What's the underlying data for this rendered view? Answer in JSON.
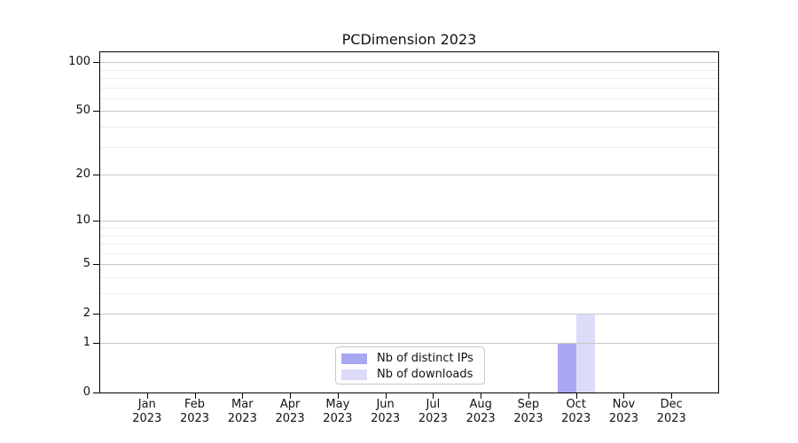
{
  "chart_data": {
    "type": "bar",
    "title": "PCDimension 2023",
    "year": "2023",
    "categories": [
      "Jan",
      "Feb",
      "Mar",
      "Apr",
      "May",
      "Jun",
      "Jul",
      "Aug",
      "Sep",
      "Oct",
      "Nov",
      "Dec"
    ],
    "series": [
      {
        "name": "Nb of distinct IPs",
        "color": "#a8a8f2",
        "values": [
          0,
          0,
          0,
          0,
          0,
          0,
          0,
          0,
          0,
          1,
          0,
          0
        ]
      },
      {
        "name": "Nb of downloads",
        "color": "#dcdcf8",
        "values": [
          0,
          0,
          0,
          0,
          0,
          0,
          0,
          0,
          0,
          2,
          0,
          0
        ]
      }
    ],
    "y_scale": "log1p",
    "y_axis": {
      "major_ticks": [
        100,
        50,
        20,
        10,
        5,
        2,
        1,
        0
      ],
      "minor_ticks": [
        90,
        80,
        70,
        60,
        40,
        30,
        9,
        8,
        7,
        6,
        4,
        3
      ],
      "ylim": [
        0,
        116
      ]
    },
    "xlabel": "",
    "ylabel": "",
    "grid": true,
    "legend": {
      "position": "bottom-center-inside"
    },
    "colors": {
      "axis": "#000000",
      "text": "#111111",
      "grid_major": "#c6c6c6",
      "grid_minor": "#ececec",
      "background": "#ffffff"
    }
  }
}
